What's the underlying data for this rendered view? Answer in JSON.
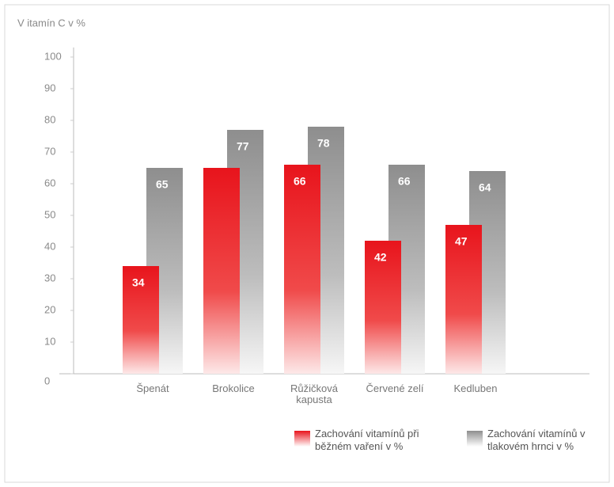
{
  "chart_data": {
    "type": "bar",
    "title": "V itamín C v %",
    "categories": [
      "Špenát",
      "Brokolice",
      "Růžičková kapusta",
      "Červené zelí",
      "Kedluben"
    ],
    "series": [
      {
        "name": "Zachování vitamínů při běžném vaření v %",
        "color": "#e8141c",
        "values": [
          34,
          65,
          66,
          42,
          47
        ],
        "value_labels": [
          "34",
          null,
          "66",
          "42",
          "47"
        ]
      },
      {
        "name": "Zachování vitamínů v tlakovém hrnci v %",
        "color": "#8e8e8e",
        "values": [
          65,
          77,
          78,
          66,
          64
        ]
      }
    ],
    "ylim": [
      0,
      100
    ],
    "yticks": [
      0,
      10,
      20,
      30,
      40,
      50,
      60,
      70,
      80,
      90,
      100
    ]
  }
}
